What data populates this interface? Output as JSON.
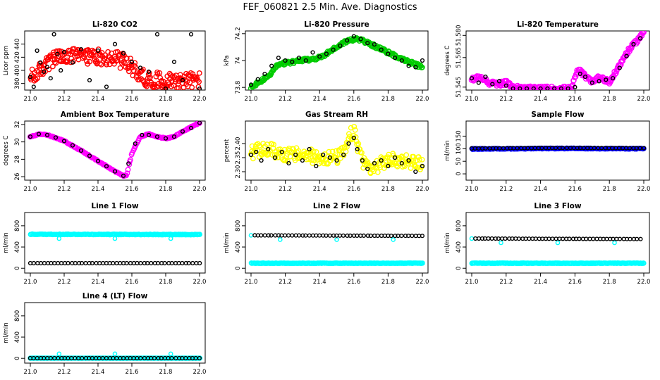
{
  "figure_title": "FEF_060821  2.5 Min. Ave. Diagnostics",
  "colors": {
    "red": "#ff0000",
    "green": "#00cc00",
    "magenta": "#ff00ff",
    "yellow": "#ffff00",
    "blue": "#0000ff",
    "cyan": "#00ffff",
    "black": "#000000"
  },
  "chart_data": [
    {
      "id": "co2",
      "type": "scatter",
      "title": "Li-820 CO2",
      "ylabel": "Licor ppm",
      "xlim": [
        21.0,
        22.0
      ],
      "xticks": [
        "21.0",
        "21.2",
        "21.4",
        "21.6",
        "21.8",
        "22.0"
      ],
      "ylim": [
        370,
        460
      ],
      "yticks": [
        380,
        400,
        420,
        440
      ],
      "series": [
        {
          "name": "raw",
          "color": "red",
          "size": 3.2,
          "noise": 12,
          "points": 260,
          "x": [
            21.0,
            21.05,
            21.1,
            21.15,
            21.2,
            21.3,
            21.4,
            21.5,
            21.55,
            21.6,
            21.65,
            21.7,
            21.8,
            21.9,
            22.0
          ],
          "y": [
            388,
            398,
            410,
            418,
            420,
            422,
            421,
            418,
            414,
            405,
            392,
            386,
            385,
            385,
            385
          ]
        },
        {
          "name": "avg",
          "color": "black",
          "size": 2.4,
          "noise": 0,
          "x": [
            21.0,
            21.02,
            21.04,
            21.06,
            21.08,
            21.1,
            21.12,
            21.14,
            21.16,
            21.18,
            21.2,
            21.25,
            21.3,
            21.35,
            21.4,
            21.45,
            21.5,
            21.55,
            21.6,
            21.65,
            21.7,
            21.75,
            21.8,
            21.85,
            21.9,
            21.95,
            22.0
          ],
          "y": [
            390,
            375,
            430,
            412,
            398,
            405,
            388,
            455,
            425,
            400,
            428,
            412,
            432,
            385,
            430,
            375,
            440,
            426,
            413,
            404,
            398,
            455,
            372,
            413,
            385,
            455,
            372
          ]
        }
      ]
    },
    {
      "id": "pressure",
      "type": "scatter",
      "title": "Li-820 Pressure",
      "ylabel": "kPa",
      "xlim": [
        21.0,
        22.0
      ],
      "xticks": [
        "21.0",
        "21.2",
        "21.4",
        "21.6",
        "21.8",
        "22.0"
      ],
      "ylim": [
        73.78,
        74.22
      ],
      "yticks": [
        73.8,
        74.0,
        74.2
      ],
      "series": [
        {
          "name": "raw",
          "color": "green",
          "size": 3.2,
          "noise": 0.012,
          "points": 260,
          "x": [
            21.0,
            21.1,
            21.15,
            21.2,
            21.3,
            21.4,
            21.5,
            21.55,
            21.6,
            21.65,
            21.7,
            21.8,
            21.9,
            22.0
          ],
          "y": [
            73.8,
            73.88,
            73.96,
            73.98,
            74.0,
            74.02,
            74.1,
            74.14,
            74.16,
            74.15,
            74.12,
            74.06,
            74.0,
            73.95
          ]
        },
        {
          "name": "avg",
          "color": "black",
          "size": 2.4,
          "noise": 0,
          "x": [
            21.0,
            21.04,
            21.08,
            21.12,
            21.16,
            21.2,
            21.24,
            21.28,
            21.32,
            21.36,
            21.4,
            21.44,
            21.48,
            21.52,
            21.56,
            21.6,
            21.64,
            21.68,
            21.72,
            21.76,
            21.8,
            21.84,
            21.88,
            21.92,
            21.96,
            22.0
          ],
          "y": [
            73.82,
            73.86,
            73.9,
            73.96,
            74.02,
            74.0,
            73.99,
            74.02,
            74.0,
            74.06,
            74.03,
            74.05,
            74.08,
            74.11,
            74.15,
            74.18,
            74.16,
            74.13,
            74.12,
            74.08,
            74.05,
            74.02,
            74.0,
            73.96,
            73.95,
            74.0
          ]
        }
      ]
    },
    {
      "id": "temperature",
      "type": "scatter",
      "title": "Li-820 Temperature",
      "ylabel": "degrees C",
      "xlim": [
        21.0,
        22.0
      ],
      "xticks": [
        "21.0",
        "21.2",
        "21.4",
        "21.6",
        "21.8",
        "22.0"
      ],
      "ylim": [
        51.543,
        51.583
      ],
      "yticks": [
        51.545,
        51.565,
        51.58
      ],
      "ytick_labels": [
        "51.545",
        "51.565",
        "51.580"
      ],
      "series": [
        {
          "name": "raw",
          "color": "magenta",
          "size": 3.4,
          "noise": 0.0015,
          "points": 260,
          "x": [
            21.0,
            21.05,
            21.1,
            21.15,
            21.2,
            21.25,
            21.3,
            21.4,
            21.5,
            21.58,
            21.61,
            21.63,
            21.66,
            21.7,
            21.75,
            21.8,
            21.85,
            21.9,
            21.95,
            22.0
          ],
          "y": [
            51.55,
            51.552,
            51.548,
            51.547,
            51.548,
            51.545,
            51.544,
            51.544,
            51.544,
            51.544,
            51.555,
            51.556,
            51.552,
            51.549,
            51.552,
            51.548,
            51.558,
            51.568,
            51.575,
            51.582
          ]
        },
        {
          "name": "avg",
          "color": "black",
          "size": 2.4,
          "noise": 0,
          "x": [
            21.0,
            21.04,
            21.08,
            21.12,
            21.16,
            21.2,
            21.24,
            21.28,
            21.32,
            21.36,
            21.4,
            21.44,
            21.48,
            21.52,
            21.56,
            21.6,
            21.63,
            21.66,
            21.7,
            21.74,
            21.78,
            21.82,
            21.86,
            21.9,
            21.94,
            21.98
          ],
          "y": [
            51.551,
            51.548,
            51.552,
            51.547,
            51.549,
            51.546,
            51.544,
            51.544,
            51.544,
            51.544,
            51.544,
            51.544,
            51.544,
            51.544,
            51.544,
            51.545,
            51.554,
            51.552,
            51.548,
            51.549,
            51.55,
            51.551,
            51.558,
            51.566,
            51.574,
            51.578
          ]
        }
      ]
    },
    {
      "id": "ambient",
      "type": "scatter",
      "title": "Ambient Box Temperature",
      "ylabel": "degrees C",
      "xlim": [
        21.0,
        22.0
      ],
      "xticks": [
        "21.0",
        "21.2",
        "21.4",
        "21.6",
        "21.8",
        "22.0"
      ],
      "ylim": [
        25.6,
        32.4
      ],
      "yticks": [
        26,
        28,
        30,
        32
      ],
      "series": [
        {
          "name": "raw",
          "color": "magenta",
          "size": 3.2,
          "noise": 0.05,
          "points": 200,
          "x": [
            21.0,
            21.05,
            21.1,
            21.2,
            21.3,
            21.4,
            21.5,
            21.55,
            21.57,
            21.6,
            21.65,
            21.7,
            21.75,
            21.8,
            21.85,
            21.9,
            22.0
          ],
          "y": [
            30.6,
            30.9,
            30.8,
            30.1,
            29.0,
            27.8,
            26.6,
            26.1,
            26.2,
            28.7,
            30.6,
            30.9,
            30.6,
            30.4,
            30.6,
            31.2,
            32.2
          ]
        },
        {
          "name": "avg",
          "color": "black",
          "size": 2.4,
          "noise": 0,
          "x": [
            21.0,
            21.05,
            21.1,
            21.15,
            21.2,
            21.25,
            21.3,
            21.35,
            21.4,
            21.45,
            21.5,
            21.55,
            21.58,
            21.62,
            21.66,
            21.7,
            21.75,
            21.8,
            21.85,
            21.9,
            21.95,
            22.0
          ],
          "y": [
            30.6,
            30.9,
            30.8,
            30.5,
            30.1,
            29.6,
            29.0,
            28.4,
            27.8,
            27.2,
            26.6,
            26.1,
            27.5,
            29.8,
            30.8,
            30.8,
            30.6,
            30.4,
            30.6,
            31.2,
            31.6,
            32.2
          ]
        }
      ]
    },
    {
      "id": "rh",
      "type": "scatter",
      "title": "Gas Stream RH",
      "ylabel": "percent",
      "xlim": [
        21.0,
        22.0
      ],
      "xticks": [
        "21.0",
        "21.2",
        "21.4",
        "21.6",
        "21.8",
        "22.0"
      ],
      "ylim": [
        2.27,
        2.48
      ],
      "yticks": [
        2.3,
        2.35,
        2.4
      ],
      "ytick_labels": [
        "2.30",
        "2.35",
        "2.40"
      ],
      "series": [
        {
          "name": "raw",
          "color": "yellow",
          "size": 3.2,
          "noise": 0.025,
          "points": 240,
          "x": [
            21.0,
            21.1,
            21.2,
            21.3,
            21.4,
            21.5,
            21.55,
            21.58,
            21.6,
            21.62,
            21.66,
            21.7,
            21.8,
            21.9,
            22.0
          ],
          "y": [
            2.37,
            2.38,
            2.36,
            2.36,
            2.35,
            2.35,
            2.37,
            2.43,
            2.44,
            2.4,
            2.33,
            2.31,
            2.34,
            2.34,
            2.33
          ]
        },
        {
          "name": "avg",
          "color": "black",
          "size": 2.4,
          "noise": 0,
          "x": [
            21.0,
            21.03,
            21.06,
            21.1,
            21.14,
            21.18,
            21.22,
            21.26,
            21.3,
            21.34,
            21.38,
            21.42,
            21.46,
            21.5,
            21.54,
            21.57,
            21.6,
            21.62,
            21.65,
            21.68,
            21.72,
            21.76,
            21.8,
            21.84,
            21.88,
            21.92,
            21.96,
            22.0
          ],
          "y": [
            2.36,
            2.37,
            2.34,
            2.38,
            2.35,
            2.37,
            2.33,
            2.36,
            2.34,
            2.38,
            2.32,
            2.36,
            2.35,
            2.34,
            2.36,
            2.4,
            2.42,
            2.38,
            2.34,
            2.31,
            2.33,
            2.34,
            2.32,
            2.35,
            2.33,
            2.34,
            2.3,
            2.32
          ]
        }
      ]
    },
    {
      "id": "sample_flow",
      "type": "scatter",
      "title": "Sample Flow",
      "ylabel": "ml/min",
      "xlim": [
        21.0,
        22.0
      ],
      "xticks": [
        "21.0",
        "21.2",
        "21.4",
        "21.6",
        "21.8",
        "22.0"
      ],
      "ylim": [
        -25,
        210
      ],
      "yticks": [
        0,
        50,
        100,
        150
      ],
      "series": [
        {
          "name": "raw",
          "color": "blue",
          "size": 3.0,
          "noise": 1.5,
          "points": 220,
          "x": [
            21.0,
            21.5,
            22.0
          ],
          "y": [
            99,
            101,
            100
          ]
        },
        {
          "name": "avg",
          "color": "black",
          "size": 2.4,
          "noise": 0,
          "points": 50,
          "x": [
            21.0,
            21.5,
            22.0
          ],
          "y": [
            101,
            103,
            102
          ]
        }
      ]
    },
    {
      "id": "line1",
      "type": "scatter",
      "title": "Line 1 Flow",
      "ylabel": "ml/min",
      "xlim": [
        21.0,
        22.0
      ],
      "xticks": [
        "21.0",
        "21.2",
        "21.4",
        "21.6",
        "21.8",
        "22.0"
      ],
      "ylim": [
        -90,
        1050
      ],
      "yticks": [
        0,
        400,
        800
      ],
      "series": [
        {
          "name": "total",
          "color": "cyan",
          "size": 3.0,
          "noise": 6,
          "points": 220,
          "x": [
            21.0,
            22.0
          ],
          "y": [
            640,
            635
          ]
        },
        {
          "name": "spikes",
          "color": "cyan",
          "size": 2.6,
          "noise": 0,
          "x": [
            21.17,
            21.5,
            21.83
          ],
          "y": [
            560,
            560,
            560
          ]
        },
        {
          "name": "line",
          "color": "black",
          "size": 2.4,
          "noise": 0,
          "points": 50,
          "x": [
            21.0,
            22.0
          ],
          "y": [
            95,
            95
          ]
        }
      ]
    },
    {
      "id": "line2",
      "type": "scatter",
      "title": "Line 2 Flow",
      "ylabel": "ml/min",
      "xlim": [
        21.0,
        22.0
      ],
      "xticks": [
        "21.0",
        "21.2",
        "21.4",
        "21.6",
        "21.8",
        "22.0"
      ],
      "ylim": [
        -90,
        1050
      ],
      "yticks": [
        0,
        400,
        800
      ],
      "series": [
        {
          "name": "total",
          "color": "cyan",
          "size": 3.0,
          "noise": 4,
          "points": 220,
          "x": [
            21.0,
            22.0
          ],
          "y": [
            95,
            95
          ]
        },
        {
          "name": "spikes",
          "color": "cyan",
          "size": 2.6,
          "noise": 0,
          "x": [
            21.0,
            21.17,
            21.5,
            21.83
          ],
          "y": [
            620,
            540,
            540,
            540
          ]
        },
        {
          "name": "line",
          "color": "black",
          "size": 2.4,
          "noise": 0,
          "points": 50,
          "x": [
            21.02,
            22.0
          ],
          "y": [
            620,
            610
          ]
        }
      ]
    },
    {
      "id": "line3",
      "type": "scatter",
      "title": "Line 3 Flow",
      "ylabel": "ml/min",
      "xlim": [
        21.0,
        22.0
      ],
      "xticks": [
        "21.0",
        "21.2",
        "21.4",
        "21.6",
        "21.8",
        "22.0"
      ],
      "ylim": [
        -90,
        1050
      ],
      "yticks": [
        0,
        400,
        800
      ],
      "series": [
        {
          "name": "total",
          "color": "cyan",
          "size": 3.0,
          "noise": 4,
          "points": 220,
          "x": [
            21.0,
            22.0
          ],
          "y": [
            95,
            95
          ]
        },
        {
          "name": "spikes",
          "color": "cyan",
          "size": 2.6,
          "noise": 0,
          "x": [
            21.0,
            21.17,
            21.5,
            21.83
          ],
          "y": [
            560,
            480,
            480,
            480
          ]
        },
        {
          "name": "line",
          "color": "black",
          "size": 2.4,
          "noise": 0,
          "points": 50,
          "x": [
            21.02,
            21.98
          ],
          "y": [
            560,
            550
          ]
        }
      ]
    },
    {
      "id": "line4",
      "type": "scatter",
      "title": "Line 4 (LT) Flow",
      "ylabel": "ml/min",
      "xlim": [
        21.0,
        22.0
      ],
      "xticks": [
        "21.0",
        "21.2",
        "21.4",
        "21.6",
        "21.8",
        "22.0"
      ],
      "ylim": [
        -90,
        1050
      ],
      "yticks": [
        0,
        400,
        800
      ],
      "series": [
        {
          "name": "total",
          "color": "cyan",
          "size": 3.0,
          "noise": 1,
          "points": 160,
          "x": [
            21.0,
            22.0
          ],
          "y": [
            3,
            3
          ]
        },
        {
          "name": "spikes",
          "color": "cyan",
          "size": 2.6,
          "noise": 0,
          "x": [
            21.17,
            21.5,
            21.83
          ],
          "y": [
            85,
            85,
            85
          ]
        },
        {
          "name": "line",
          "color": "black",
          "size": 2.4,
          "noise": 0,
          "points": 50,
          "x": [
            21.0,
            22.0
          ],
          "y": [
            3,
            3
          ]
        }
      ]
    }
  ]
}
